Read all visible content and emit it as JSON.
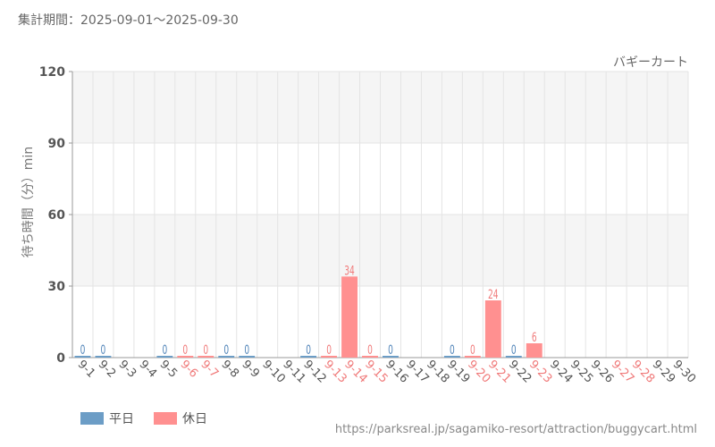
{
  "header": {
    "period": "集計期間：2025-09-01～2025-09-30"
  },
  "source_url": "https://parksreal.jp/sagamiko-resort/attraction/buggycart.html",
  "legend": {
    "weekday_label": "平日",
    "holiday_label": "休日"
  },
  "colors": {
    "weekday": "#6c9dc6",
    "holiday": "#ff9090",
    "weekday_text": "#4f83b8",
    "holiday_text": "#f07a7a",
    "grid": "#e4e4e4",
    "band": "#f5f5f5"
  },
  "chart_data": {
    "type": "bar",
    "title": "バギーカート",
    "xlabel": "",
    "ylabel": "待ち時間（分）min",
    "ylim": [
      0,
      120
    ],
    "yticks": [
      0,
      30,
      60,
      90,
      120
    ],
    "grid": true,
    "categories": [
      "9-1",
      "9-2",
      "9-3",
      "9-4",
      "9-5",
      "9-6",
      "9-7",
      "9-8",
      "9-9",
      "9-10",
      "9-11",
      "9-12",
      "9-13",
      "9-14",
      "9-15",
      "9-16",
      "9-17",
      "9-18",
      "9-19",
      "9-20",
      "9-21",
      "9-22",
      "9-23",
      "9-24",
      "9-25",
      "9-26",
      "9-27",
      "9-28",
      "9-29",
      "9-30"
    ],
    "day_types": [
      "weekday",
      "weekday",
      "weekday",
      "weekday",
      "weekday",
      "holiday",
      "holiday",
      "weekday",
      "weekday",
      "weekday",
      "weekday",
      "weekday",
      "holiday",
      "holiday",
      "holiday",
      "weekday",
      "weekday",
      "weekday",
      "weekday",
      "holiday",
      "holiday",
      "weekday",
      "holiday",
      "weekday",
      "weekday",
      "weekday",
      "holiday",
      "holiday",
      "weekday",
      "weekday"
    ],
    "values": [
      0,
      0,
      null,
      null,
      0,
      0,
      0,
      0,
      0,
      null,
      null,
      0,
      0,
      34,
      0,
      0,
      null,
      null,
      0,
      0,
      24,
      0,
      6,
      null,
      null,
      null,
      null,
      null,
      null,
      null
    ]
  }
}
